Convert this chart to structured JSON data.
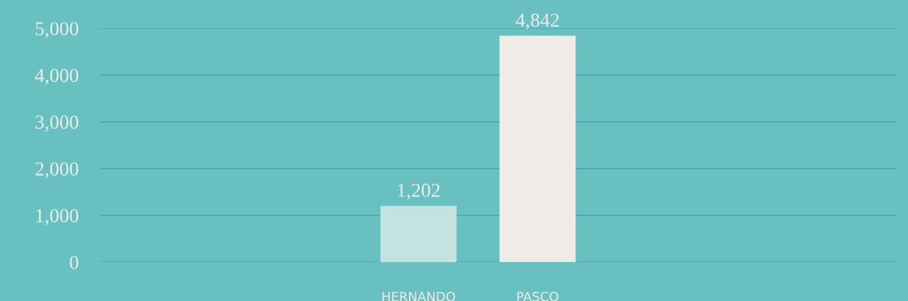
{
  "chart_data": {
    "type": "bar",
    "categories": [
      "HERNANDO",
      "PASCO"
    ],
    "values": [
      1202,
      4842
    ],
    "colors": [
      "#c3e2e0",
      "#f0ebe6"
    ],
    "ylim": [
      0,
      5000
    ],
    "yticks": [
      {
        "value": 0,
        "label": "0"
      },
      {
        "value": 1000,
        "label": "1,000"
      },
      {
        "value": 2000,
        "label": "2,000"
      },
      {
        "value": 3000,
        "label": "3,000"
      },
      {
        "value": 4000,
        "label": "4,000"
      },
      {
        "value": 5000,
        "label": "5,000"
      }
    ],
    "value_labels": [
      "1,202",
      "4,842"
    ],
    "grid": "y"
  }
}
